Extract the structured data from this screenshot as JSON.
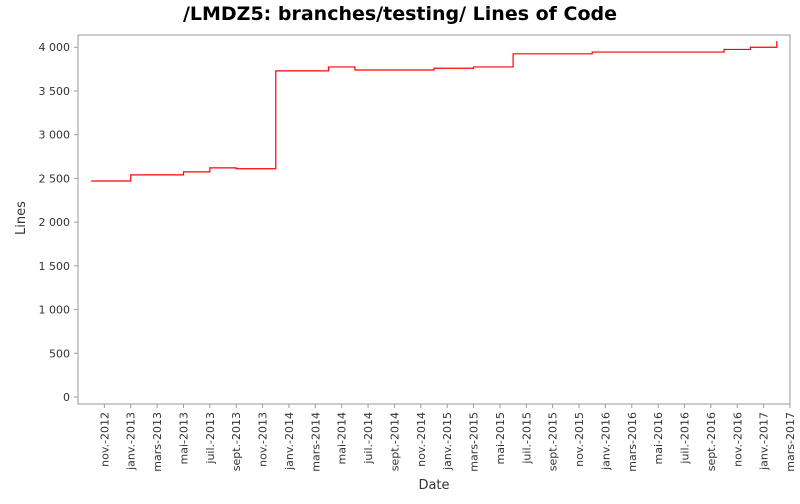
{
  "chart_data": {
    "type": "step",
    "title": "/LMDZ5: branches/testing/ Lines of Code",
    "x_label": "Date",
    "y_label": "Lines",
    "x": [
      "2012-10",
      "2013-01",
      "2013-05",
      "2013-07",
      "2013-09",
      "2013-12",
      "2014-04",
      "2014-06",
      "2014-12",
      "2015-03",
      "2015-06",
      "2015-12",
      "2016-10",
      "2016-12",
      "2017-02"
    ],
    "series": [
      {
        "name": "Lines",
        "color": "#ff0000",
        "values": [
          2470,
          2540,
          2575,
          2620,
          2610,
          3730,
          3775,
          3740,
          3760,
          3775,
          3925,
          3945,
          3975,
          4000,
          4070
        ]
      }
    ],
    "xlim": [
      "2012-09",
      "2017-03"
    ],
    "xticks": [
      {
        "value": "2012-11",
        "label": "nov.-2012"
      },
      {
        "value": "2013-01",
        "label": "janv.-2013"
      },
      {
        "value": "2013-03",
        "label": "mars-2013"
      },
      {
        "value": "2013-05",
        "label": "mai-2013"
      },
      {
        "value": "2013-07",
        "label": "juil.-2013"
      },
      {
        "value": "2013-09",
        "label": "sept.-2013"
      },
      {
        "value": "2013-11",
        "label": "nov.-2013"
      },
      {
        "value": "2014-01",
        "label": "janv.-2014"
      },
      {
        "value": "2014-03",
        "label": "mars-2014"
      },
      {
        "value": "2014-05",
        "label": "mai-2014"
      },
      {
        "value": "2014-07",
        "label": "juil.-2014"
      },
      {
        "value": "2014-09",
        "label": "sept.-2014"
      },
      {
        "value": "2014-11",
        "label": "nov.-2014"
      },
      {
        "value": "2015-01",
        "label": "janv.-2015"
      },
      {
        "value": "2015-03",
        "label": "mars-2015"
      },
      {
        "value": "2015-05",
        "label": "mai-2015"
      },
      {
        "value": "2015-07",
        "label": "juil.-2015"
      },
      {
        "value": "2015-09",
        "label": "sept.-2015"
      },
      {
        "value": "2015-11",
        "label": "nov.-2015"
      },
      {
        "value": "2016-01",
        "label": "janv.-2016"
      },
      {
        "value": "2016-03",
        "label": "mars-2016"
      },
      {
        "value": "2016-05",
        "label": "mai-2016"
      },
      {
        "value": "2016-07",
        "label": "juil.-2016"
      },
      {
        "value": "2016-09",
        "label": "sept.-2016"
      },
      {
        "value": "2016-11",
        "label": "nov.-2016"
      },
      {
        "value": "2017-01",
        "label": "janv.-2017"
      },
      {
        "value": "2017-03",
        "label": "mars-2017"
      }
    ],
    "ylim": [
      -80,
      4140
    ],
    "yticks": [
      0,
      500,
      {
        "value": 1000,
        "label": "1 000"
      },
      {
        "value": 1500,
        "label": "1 500"
      },
      {
        "value": 2000,
        "label": "2 000"
      },
      {
        "value": 2500,
        "label": "2 500"
      },
      {
        "value": 3000,
        "label": "3 000"
      },
      {
        "value": 3500,
        "label": "3 500"
      },
      {
        "value": 4000,
        "label": "4 000"
      }
    ],
    "grid": false
  }
}
